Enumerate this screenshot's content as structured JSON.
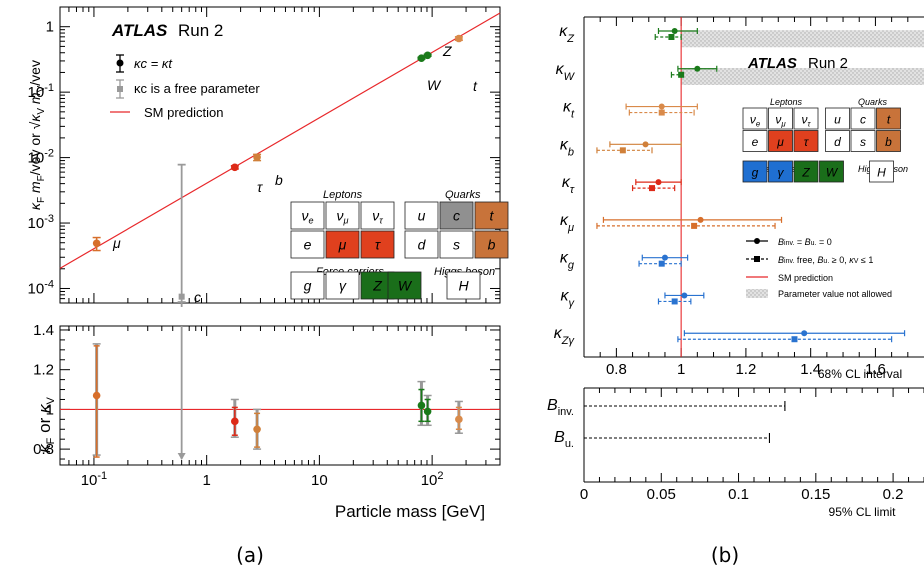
{
  "colors": {
    "sm_line": "#e8282b",
    "grey": "#9a9a9a",
    "lepton_fill": "#e0401e",
    "quark_fill": "#c8733a",
    "boson_fill": "#1a6e1a",
    "gluon_fill": "#1f6fd1",
    "bosonpt": "#1a7a1a",
    "top_pt": "#d98a4a",
    "bottom_pt": "#d0803a",
    "tau_pt": "#dd2a18",
    "mu_pt": "#d76f2b",
    "blue_pt": "#2a73d0",
    "lgrey": "#cccccc",
    "dgrey": "#909090"
  },
  "panel_a": {
    "label": "(a)",
    "legend": {
      "atlas": "ATLAS",
      "run": "Run 2",
      "item1": "κc = κt",
      "item2": "κc is a free parameter",
      "item3": "SM prediction"
    },
    "ylabel_top": "κF mF/vev or √κV mV/vev",
    "ylabel_bottom": "κF or κV",
    "xlabel": "Particle mass [GeV]",
    "table": {
      "leptons": "Leptons",
      "quarks": "Quarks",
      "force": "Force carriers",
      "higgs": "Higgs boson"
    },
    "particle_labels": {
      "mu": "μ",
      "tau": "τ",
      "b": "b",
      "c": "c",
      "W": "W",
      "Z": "Z",
      "t": "t"
    }
  },
  "chart_data": [
    {
      "type": "scatter",
      "panel": "a-top",
      "xscale": "log",
      "yscale": "log",
      "xlim": [
        0.05,
        400
      ],
      "ylim": [
        6e-05,
        2
      ],
      "xticks": [
        "10^-1",
        "1",
        "10",
        "10^2"
      ],
      "yticks": [
        "10^-4",
        "10^-3",
        "10^-2",
        "10^-1",
        "1"
      ],
      "sm_line": [
        [
          0.05,
          0.000203
        ],
        [
          400,
          1.62
        ]
      ],
      "points": [
        {
          "name": "μ",
          "x": 0.1057,
          "y": 0.00049,
          "err": [
            0.00038,
            0.0006
          ],
          "color": "mu_pt"
        },
        {
          "name": "τ",
          "x": 1.777,
          "y": 0.0071,
          "err": [
            0.0067,
            0.0075
          ],
          "color": "tau_pt"
        },
        {
          "name": "b",
          "x": 2.8,
          "y": 0.0101,
          "err": [
            0.009,
            0.0112
          ],
          "color": "bottom_pt"
        },
        {
          "name": "W",
          "x": 80.4,
          "y": 0.33,
          "err": [
            0.32,
            0.34
          ],
          "color": "bosonpt"
        },
        {
          "name": "Z",
          "x": 91.2,
          "y": 0.366,
          "err": [
            0.355,
            0.378
          ],
          "color": "bosonpt"
        },
        {
          "name": "t",
          "x": 172.7,
          "y": 0.66,
          "err": [
            0.62,
            0.7
          ],
          "color": "top_pt"
        },
        {
          "name": "c",
          "x": 0.6,
          "y": 7.5e-05,
          "err": [
            6.2e-05,
            0.0078
          ],
          "color": "grey"
        }
      ]
    },
    {
      "type": "scatter",
      "panel": "a-bottom",
      "xscale": "log",
      "xlim": [
        0.05,
        400
      ],
      "ylim": [
        0.72,
        1.42
      ],
      "yticks": [
        0.8,
        1,
        1.2,
        1.4
      ],
      "ref": 1,
      "points": [
        {
          "x": 0.1057,
          "y": 1.07,
          "err": [
            0.76,
            1.32
          ],
          "err2": [
            0.77,
            1.33
          ],
          "color": "mu_pt"
        },
        {
          "x": 1.777,
          "y": 0.94,
          "err": [
            0.87,
            1.01
          ],
          "err2": [
            0.86,
            1.05
          ],
          "color": "tau_pt"
        },
        {
          "x": 2.8,
          "y": 0.9,
          "err": [
            0.81,
            0.98
          ],
          "err2": [
            0.8,
            1.0
          ],
          "color": "bottom_pt"
        },
        {
          "x": 80.4,
          "y": 1.02,
          "err": [
            0.94,
            1.1
          ],
          "err2": [
            0.92,
            1.14
          ],
          "color": "bosonpt"
        },
        {
          "x": 91.2,
          "y": 0.99,
          "err": [
            0.94,
            1.05
          ],
          "err2": [
            0.92,
            1.07
          ],
          "color": "bosonpt"
        },
        {
          "x": 172.7,
          "y": 0.95,
          "err": [
            0.9,
            1.01
          ],
          "err2": [
            0.88,
            1.04
          ],
          "color": "top_pt"
        },
        {
          "x": 0.6,
          "y": 0.75,
          "err": [
            0.75,
            1.42
          ],
          "color": "grey",
          "arrow": true
        }
      ]
    },
    {
      "type": "scatter",
      "panel": "b-top",
      "xlim": [
        0.7,
        1.75
      ],
      "xticks": [
        0.8,
        1,
        1.2,
        1.4,
        1.6
      ],
      "xlabel": "68% CL interval",
      "ref": 1,
      "forbidden_from": 1.0,
      "rows": [
        {
          "label": "κZ",
          "solid": [
            0.98,
            0.93,
            1.05
          ],
          "dashed": [
            0.97,
            0.92,
            1.0
          ],
          "color": "bosonpt",
          "forbidden_dashed": true
        },
        {
          "label": "κW",
          "solid": [
            1.05,
            0.99,
            1.11
          ],
          "dashed": [
            1.0,
            0.97,
            1.0
          ],
          "color": "bosonpt",
          "forbidden_dashed": true
        },
        {
          "label": "κt",
          "solid": [
            0.94,
            0.83,
            1.05
          ],
          "dashed": [
            0.94,
            0.84,
            1.04
          ],
          "color": "top_pt"
        },
        {
          "label": "κb",
          "solid": [
            0.89,
            0.78,
            1.0
          ],
          "dashed": [
            0.82,
            0.74,
            0.91
          ],
          "color": "bottom_pt"
        },
        {
          "label": "κτ",
          "solid": [
            0.93,
            0.86,
            1.0
          ],
          "dashed": [
            0.91,
            0.85,
            0.98
          ],
          "color": "tau_pt"
        },
        {
          "label": "κμ",
          "solid": [
            1.06,
            0.76,
            1.31
          ],
          "dashed": [
            1.04,
            0.74,
            1.29
          ],
          "color": "mu_pt"
        },
        {
          "label": "κg",
          "solid": [
            0.95,
            0.88,
            1.02
          ],
          "dashed": [
            0.94,
            0.87,
            1.0
          ],
          "color": "blue_pt"
        },
        {
          "label": "κγ",
          "solid": [
            1.01,
            0.95,
            1.07
          ],
          "dashed": [
            0.98,
            0.93,
            1.03
          ],
          "color": "blue_pt"
        },
        {
          "label": "κZγ",
          "solid": [
            1.38,
            1.01,
            1.69
          ],
          "dashed": [
            1.35,
            0.99,
            1.65
          ],
          "color": "blue_pt"
        }
      ],
      "legend": {
        "solid": "Binv. = Bu. = 0",
        "dashed": "Binv. free, Bu. ≥ 0, κV ≤ 1",
        "sm": "SM prediction",
        "forbidden": "Parameter value not allowed"
      }
    },
    {
      "type": "bar",
      "panel": "b-bottom",
      "xlim": [
        0,
        0.22
      ],
      "xticks": [
        0,
        0.05,
        0.1,
        0.15,
        0.2
      ],
      "xlabel": "95% CL limit",
      "rows": [
        {
          "label": "Binv.",
          "value": 0.13
        },
        {
          "label": "Bu.",
          "value": 0.12
        }
      ]
    }
  ],
  "panel_b": {
    "label": "(b)",
    "atlas": "ATLAS",
    "run": "Run 2",
    "row_labels_html": [
      "κ|Z",
      "κ|W",
      "κ|t",
      "κ|b",
      "κ|τ",
      "κ|μ",
      "κ|g",
      "κ|γ",
      "κ|Zγ"
    ],
    "b_labels": [
      "B|inv.",
      "B|u."
    ]
  }
}
